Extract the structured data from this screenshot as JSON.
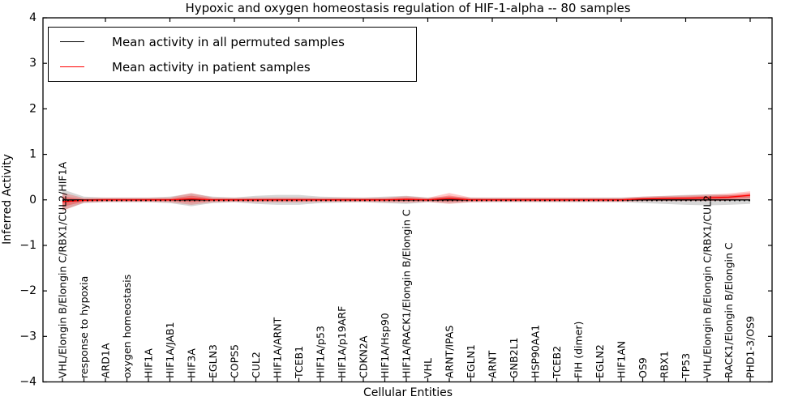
{
  "title": "Hypoxic and oxygen homeostasis regulation of HIF-1-alpha -- 80 samples",
  "axes": {
    "x": {
      "label": "Cellular Entities"
    },
    "y": {
      "label": "Inferred Activity",
      "ticks": [
        4,
        3,
        2,
        1,
        0,
        -1,
        -2,
        -3,
        -4
      ],
      "lim": [
        -4,
        4
      ]
    }
  },
  "legend": {
    "items": [
      {
        "label": "Mean activity in all permuted samples",
        "color": "#000000"
      },
      {
        "label": "Mean activity in patient samples",
        "color": "#ff0000"
      }
    ]
  },
  "colors": {
    "permuted_line": "#000000",
    "patient_line": "#ff0000",
    "permuted_band": "rgba(0,0,0,0.16)",
    "patient_band_outer": "rgba(255,0,0,0.22)",
    "patient_band_inner": "rgba(255,0,0,0.30)",
    "zero_line": "#000000"
  },
  "chart_data": {
    "type": "line",
    "title": "Hypoxic and oxygen homeostasis regulation of HIF-1-alpha -- 80 samples",
    "xlabel": "Cellular Entities",
    "ylabel": "Inferred Activity",
    "ylim": [
      -4,
      4
    ],
    "grid": false,
    "legend_position": "upper left",
    "zero_reference_line": "dotted",
    "categories": [
      "VHL/Elongin B/Elongin C/RBX1/CUL2/HIF1A",
      "response to hypoxia",
      "ARD1A",
      "oxygen homeostasis",
      "HIF1A",
      "HIF1A/JAB1",
      "HIF3A",
      "EGLN3",
      "COPS5",
      "CUL2",
      "HIF1A/ARNT",
      "TCEB1",
      "HIF1A/p53",
      "HIF1A/p19ARF",
      "CDKN2A",
      "HIF1A/Hsp90",
      "HIF1A/RACK1/Elongin B/Elongin C",
      "VHL",
      "ARNT/IPAS",
      "EGLN1",
      "ARNT",
      "GNB2L1",
      "HSP90AA1",
      "TCEB2",
      "FIH (dimer)",
      "EGLN2",
      "HIF1AN",
      "OS9",
      "RBX1",
      "TP53",
      "VHL/Elongin B/Elongin C/RBX1/CUL2",
      "RACK1/Elongin B/Elongin C",
      "PHD1-3/OS9"
    ],
    "series": [
      {
        "name": "Mean activity in all permuted samples",
        "color": "#000000",
        "values": [
          0,
          0,
          0,
          0,
          0,
          0,
          0,
          0,
          0,
          0,
          0,
          0,
          0,
          0,
          0,
          0,
          0,
          0,
          0,
          0,
          0,
          0,
          0,
          0,
          0,
          0,
          0,
          0,
          0,
          0,
          0,
          0,
          0
        ],
        "std": [
          0.23,
          0.07,
          0.05,
          0.05,
          0.05,
          0.07,
          0.14,
          0.07,
          0.05,
          0.09,
          0.11,
          0.11,
          0.07,
          0.06,
          0.05,
          0.07,
          0.09,
          0.05,
          0.07,
          0.05,
          0.05,
          0.05,
          0.05,
          0.05,
          0.05,
          0.05,
          0.05,
          0.07,
          0.09,
          0.11,
          0.12,
          0.11,
          0.09
        ]
      },
      {
        "name": "Mean activity in patient samples",
        "color": "#ff0000",
        "values": [
          -0.04,
          -0.01,
          0,
          0,
          0,
          0,
          0.02,
          0,
          0,
          0,
          0,
          0,
          0,
          0,
          0,
          0,
          0.01,
          0,
          0.03,
          0,
          0,
          0,
          0,
          0,
          0,
          0,
          0,
          0.02,
          0.03,
          0.035,
          0.045,
          0.06,
          0.1
        ],
        "std": [
          0.2,
          0.05,
          0.045,
          0.045,
          0.045,
          0.05,
          0.13,
          0.05,
          0.045,
          0.05,
          0.055,
          0.055,
          0.045,
          0.045,
          0.045,
          0.05,
          0.07,
          0.045,
          0.12,
          0.05,
          0.045,
          0.045,
          0.045,
          0.045,
          0.045,
          0.045,
          0.045,
          0.05,
          0.055,
          0.06,
          0.07,
          0.08,
          0.09
        ]
      }
    ]
  }
}
